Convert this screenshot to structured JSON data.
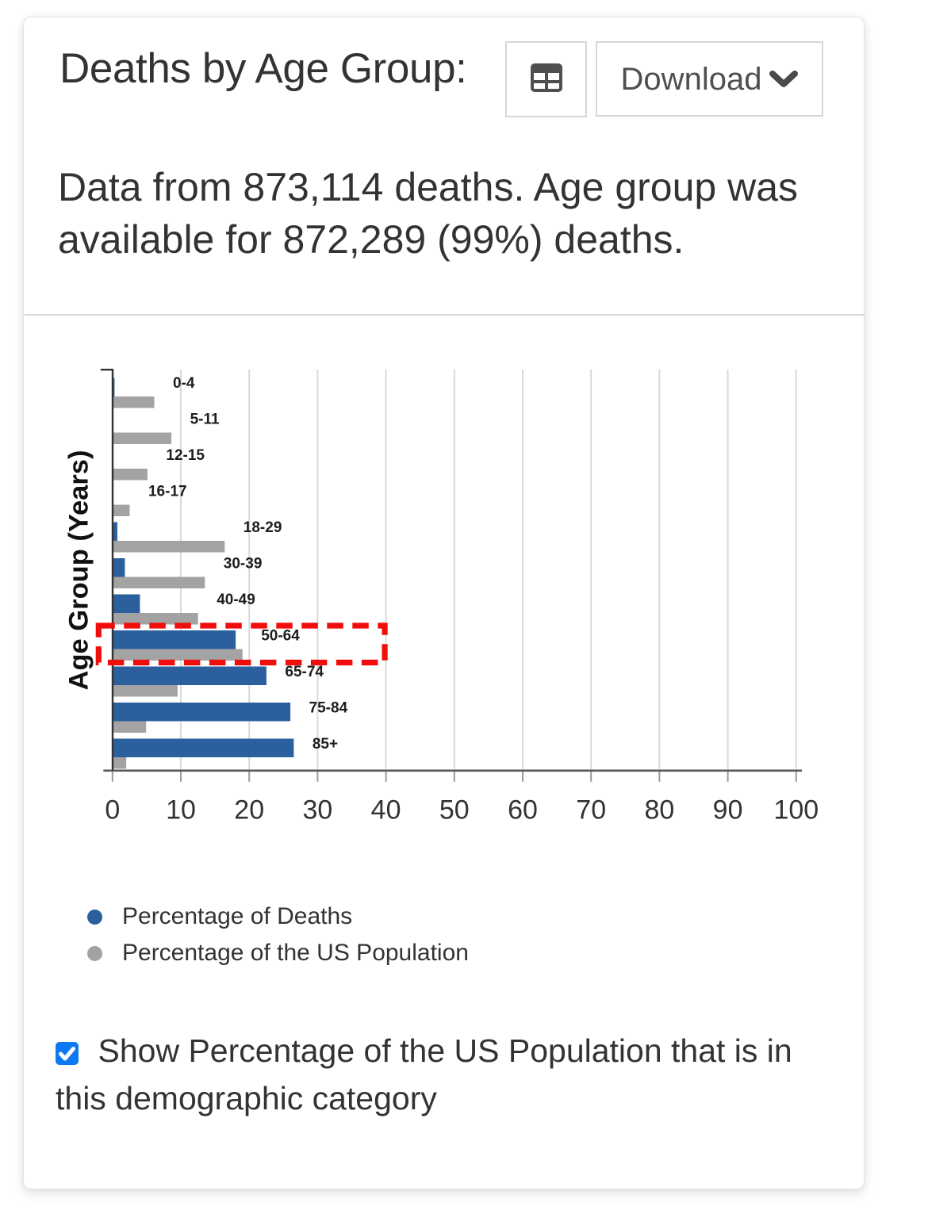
{
  "header": {
    "title": "Deaths by Age Group:",
    "table_button": {
      "icon": "table-icon"
    },
    "download_button": {
      "label": "Download",
      "icon": "chevron-down-icon"
    }
  },
  "description": "Data from 873,114 deaths. Age group was available for 872,289 (99%) deaths.",
  "chart_data": {
    "type": "bar",
    "orientation": "horizontal",
    "title": "Deaths by Age Group",
    "xlabel": "",
    "ylabel": "Age Group (Years)",
    "categories": [
      "0-4",
      "5-11",
      "12-15",
      "16-17",
      "18-29",
      "30-39",
      "40-49",
      "50-64",
      "65-74",
      "75-84",
      "85+"
    ],
    "series": [
      {
        "name": "Percentage of Deaths",
        "color": "#2b5f9e",
        "values": [
          0.1,
          0.0,
          0.0,
          0.0,
          0.6,
          1.7,
          3.9,
          17.9,
          22.4,
          25.9,
          26.4
        ]
      },
      {
        "name": "Percentage of the US Population",
        "color": "#a3a3a3",
        "values": [
          6.0,
          8.5,
          5.0,
          2.4,
          16.3,
          13.4,
          12.4,
          18.9,
          9.4,
          4.8,
          1.9
        ]
      }
    ],
    "xlim": [
      0,
      100
    ],
    "xticks": [
      0,
      10,
      20,
      30,
      40,
      50,
      60,
      70,
      80,
      90,
      100
    ],
    "grid": true,
    "legend_position": "bottom",
    "annotation": {
      "type": "dashed-rectangle",
      "color": "#f20d0d",
      "category": "50-64"
    }
  },
  "legend": {
    "items": [
      {
        "label": "Percentage of Deaths",
        "color": "#2b5f9e",
        "marker": "circle"
      },
      {
        "label": "Percentage of the US Population",
        "color": "#a3a3a3",
        "marker": "circle"
      }
    ]
  },
  "controls": {
    "population_checkbox": {
      "checked": true,
      "accent_color": "#0c79f2",
      "label": "Show Percentage of the US Population that is in this demographic category"
    }
  }
}
